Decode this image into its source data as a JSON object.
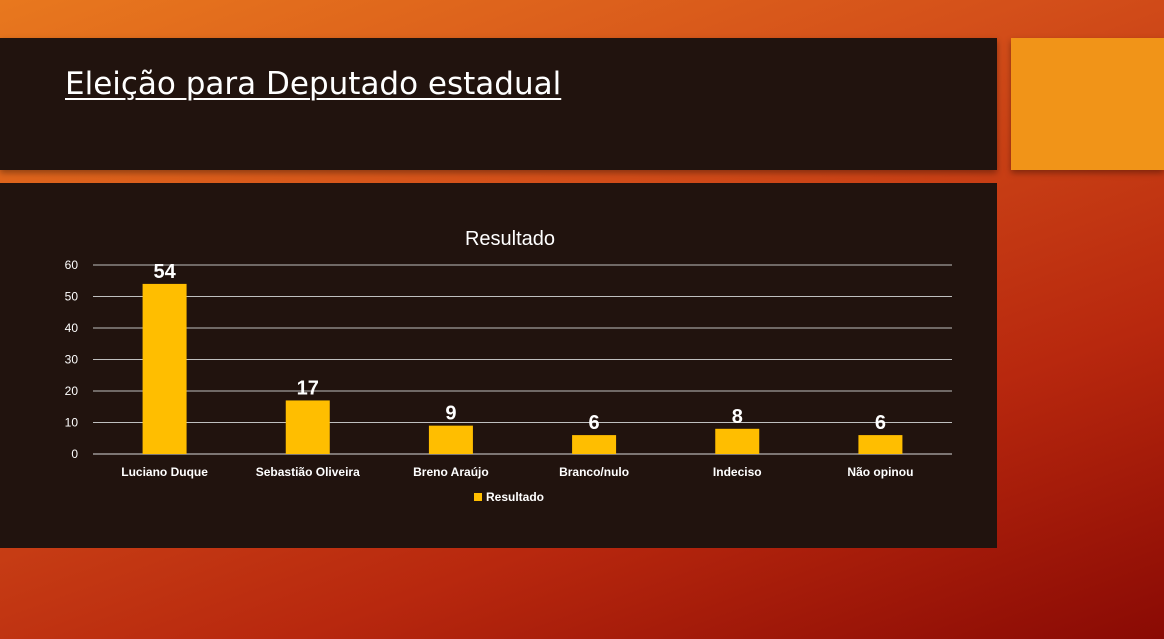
{
  "slide": {
    "title": "Eleição para Deputado estadual"
  },
  "colors": {
    "bar": "#ffbe00",
    "panel": "#21130e",
    "accent": "#f19418",
    "text": "#ffffff"
  },
  "chart_data": {
    "type": "bar",
    "title": "Resultado",
    "categories": [
      "Luciano Duque",
      "Sebastião Oliveira",
      "Breno Araújo",
      "Branco/nulo",
      "Indeciso",
      "Não opinou"
    ],
    "series": [
      {
        "name": "Resultado",
        "values": [
          54,
          17,
          9,
          6,
          8,
          6
        ]
      }
    ],
    "ylim": [
      0,
      60
    ],
    "yticks": [
      0,
      10,
      20,
      30,
      40,
      50,
      60
    ],
    "grid": true,
    "legend": "bottom",
    "data_labels": true
  }
}
